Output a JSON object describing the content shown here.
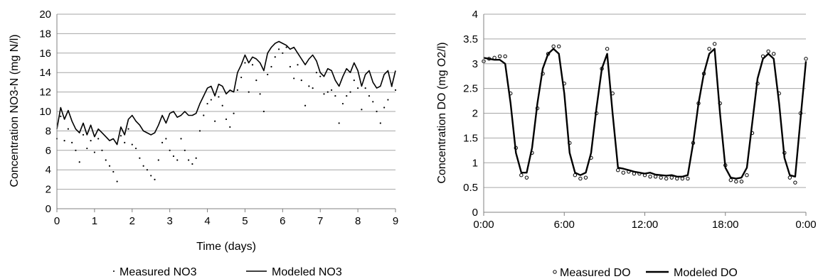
{
  "chart_data": [
    {
      "type": "line",
      "title": "",
      "xlabel": "Time (days)",
      "ylabel": "Concentration NO3-N (mg N/l)",
      "xlim": [
        0,
        9
      ],
      "ylim": [
        0,
        20
      ],
      "x_ticks": [
        "0",
        "1",
        "2",
        "3",
        "4",
        "5",
        "6",
        "7",
        "8",
        "9"
      ],
      "y_ticks": [
        "0",
        "2",
        "4",
        "6",
        "8",
        "10",
        "12",
        "14",
        "16",
        "18",
        "20"
      ],
      "grid": "horizontal",
      "legend": "bottom",
      "series": [
        {
          "name": "Measured NO3",
          "style": "dots",
          "x": [
            0,
            0.1,
            0.2,
            0.3,
            0.4,
            0.5,
            0.6,
            0.7,
            0.8,
            0.9,
            1.0,
            1.1,
            1.2,
            1.3,
            1.4,
            1.5,
            1.6,
            1.7,
            1.8,
            1.9,
            2.0,
            2.1,
            2.2,
            2.3,
            2.4,
            2.5,
            2.6,
            2.7,
            2.8,
            2.9,
            3.0,
            3.1,
            3.2,
            3.3,
            3.4,
            3.5,
            3.6,
            3.7,
            3.8,
            3.9,
            4.0,
            4.1,
            4.2,
            4.3,
            4.4,
            4.5,
            4.6,
            4.7,
            4.8,
            4.9,
            5.0,
            5.1,
            5.2,
            5.3,
            5.4,
            5.5,
            5.6,
            5.7,
            5.8,
            5.9,
            6.0,
            6.1,
            6.2,
            6.3,
            6.4,
            6.5,
            6.6,
            6.7,
            6.8,
            6.9,
            7.0,
            7.1,
            7.2,
            7.3,
            7.4,
            7.5,
            7.6,
            7.7,
            7.8,
            7.9,
            8.0,
            8.1,
            8.2,
            8.3,
            8.4,
            8.5,
            8.6,
            8.7,
            8.8,
            8.9,
            9.0
          ],
          "y": [
            7.2,
            9.5,
            7.0,
            8.2,
            6.8,
            6.0,
            4.8,
            7.6,
            6.2,
            7.0,
            5.8,
            7.2,
            6.0,
            5.0,
            4.4,
            3.8,
            2.8,
            7.5,
            6.8,
            8.2,
            6.6,
            6.2,
            5.2,
            4.4,
            4.0,
            3.4,
            3.0,
            5.0,
            6.8,
            7.2,
            6.0,
            5.4,
            5.0,
            7.2,
            6.0,
            5.0,
            4.6,
            5.2,
            8.0,
            9.6,
            10.8,
            11.2,
            9.0,
            11.5,
            10.6,
            9.2,
            8.4,
            9.8,
            12.2,
            13.5,
            15.0,
            12.0,
            14.8,
            13.2,
            11.8,
            10.0,
            13.8,
            14.6,
            15.6,
            16.4,
            16.0,
            16.6,
            14.6,
            13.4,
            14.8,
            13.2,
            10.6,
            12.6,
            12.4,
            14.0,
            13.6,
            11.8,
            12.0,
            12.2,
            11.6,
            8.8,
            10.8,
            11.6,
            12.0,
            13.2,
            12.4,
            10.2,
            12.4,
            11.6,
            11.0,
            10.0,
            8.8,
            10.4,
            11.2,
            12.6,
            12.2
          ]
        },
        {
          "name": "Modeled NO3",
          "style": "line",
          "x": [
            0,
            0.1,
            0.2,
            0.3,
            0.4,
            0.5,
            0.6,
            0.7,
            0.8,
            0.9,
            1.0,
            1.1,
            1.2,
            1.3,
            1.4,
            1.5,
            1.6,
            1.7,
            1.8,
            1.9,
            2.0,
            2.1,
            2.2,
            2.3,
            2.4,
            2.5,
            2.6,
            2.7,
            2.8,
            2.9,
            3.0,
            3.1,
            3.2,
            3.3,
            3.4,
            3.5,
            3.6,
            3.7,
            3.8,
            3.9,
            4.0,
            4.1,
            4.2,
            4.3,
            4.4,
            4.5,
            4.6,
            4.7,
            4.8,
            4.9,
            5.0,
            5.1,
            5.2,
            5.3,
            5.4,
            5.5,
            5.6,
            5.7,
            5.8,
            5.9,
            6.0,
            6.1,
            6.2,
            6.3,
            6.4,
            6.5,
            6.6,
            6.7,
            6.8,
            6.9,
            7.0,
            7.1,
            7.2,
            7.3,
            7.4,
            7.5,
            7.6,
            7.7,
            7.8,
            7.9,
            8.0,
            8.1,
            8.2,
            8.3,
            8.4,
            8.5,
            8.6,
            8.7,
            8.8,
            8.9,
            9.0
          ],
          "y": [
            8.2,
            10.4,
            9.2,
            10.1,
            9.0,
            8.2,
            7.8,
            8.8,
            7.6,
            8.6,
            7.4,
            8.2,
            7.8,
            7.4,
            7.0,
            7.2,
            6.6,
            8.4,
            7.6,
            9.2,
            9.6,
            9.0,
            8.6,
            8.0,
            7.8,
            7.6,
            7.8,
            8.6,
            9.6,
            8.8,
            9.8,
            10.0,
            9.4,
            9.6,
            10.0,
            9.6,
            9.6,
            9.8,
            10.8,
            11.6,
            12.4,
            12.6,
            11.6,
            12.8,
            12.6,
            11.8,
            12.2,
            12.0,
            14.0,
            14.8,
            15.8,
            15.0,
            15.6,
            15.4,
            15.0,
            14.2,
            16.0,
            16.6,
            17.0,
            17.2,
            17.0,
            16.8,
            16.4,
            16.6,
            16.0,
            15.4,
            14.8,
            15.4,
            15.8,
            15.2,
            14.0,
            13.6,
            14.4,
            14.2,
            13.2,
            12.6,
            13.6,
            14.4,
            14.0,
            15.0,
            14.2,
            12.6,
            13.8,
            14.2,
            13.0,
            12.4,
            12.6,
            13.8,
            14.2,
            12.6,
            14.2
          ]
        }
      ]
    },
    {
      "type": "line",
      "title": "",
      "xlabel": "",
      "ylabel": "Concentration DO (mg O2/l)",
      "xlim": [
        0,
        24
      ],
      "ylim": [
        0,
        4
      ],
      "x_ticks": [
        "0:00",
        "6:00",
        "12:00",
        "18:00",
        "0:00"
      ],
      "y_ticks": [
        "0",
        "0.5",
        "1",
        "1.5",
        "2",
        "2.5",
        "3",
        "3.5",
        "4"
      ],
      "grid": "horizontal",
      "legend": "bottom",
      "series": [
        {
          "name": "Measured DO",
          "style": "circles",
          "x": [
            0.0,
            0.4,
            0.8,
            1.2,
            1.6,
            2.0,
            2.4,
            2.8,
            3.2,
            3.6,
            4.0,
            4.4,
            4.8,
            5.2,
            5.6,
            6.0,
            6.4,
            6.8,
            7.2,
            7.6,
            8.0,
            8.4,
            8.8,
            9.2,
            9.6,
            10.0,
            10.4,
            10.8,
            11.2,
            11.6,
            12.0,
            12.4,
            12.8,
            13.2,
            13.6,
            14.0,
            14.4,
            14.8,
            15.2,
            15.6,
            16.0,
            16.4,
            16.8,
            17.2,
            17.6,
            18.0,
            18.4,
            18.8,
            19.2,
            19.6,
            20.0,
            20.4,
            20.8,
            21.2,
            21.6,
            22.0,
            22.4,
            22.8,
            23.2,
            23.6,
            24.0
          ],
          "y": [
            3.05,
            3.1,
            3.12,
            3.15,
            3.15,
            2.4,
            1.3,
            0.75,
            0.7,
            1.2,
            2.1,
            2.8,
            3.2,
            3.35,
            3.35,
            2.6,
            1.4,
            0.75,
            0.68,
            0.7,
            1.1,
            2.0,
            2.9,
            3.3,
            2.4,
            0.85,
            0.8,
            0.82,
            0.78,
            0.78,
            0.75,
            0.72,
            0.72,
            0.7,
            0.68,
            0.7,
            0.68,
            0.68,
            0.68,
            1.4,
            2.2,
            2.8,
            3.3,
            3.4,
            2.2,
            0.95,
            0.65,
            0.62,
            0.62,
            0.75,
            1.6,
            2.6,
            3.15,
            3.25,
            3.2,
            2.4,
            1.2,
            0.7,
            0.6,
            2.0,
            3.1
          ]
        },
        {
          "name": "Modeled DO",
          "style": "line",
          "x": [
            0.0,
            0.4,
            0.8,
            1.2,
            1.6,
            2.0,
            2.4,
            2.8,
            3.2,
            3.6,
            4.0,
            4.4,
            4.8,
            5.2,
            5.6,
            6.0,
            6.4,
            6.8,
            7.2,
            7.6,
            8.0,
            8.4,
            8.8,
            9.2,
            9.6,
            10.0,
            10.4,
            10.8,
            11.2,
            11.6,
            12.0,
            12.4,
            12.8,
            13.2,
            13.6,
            14.0,
            14.4,
            14.8,
            15.2,
            15.6,
            16.0,
            16.4,
            16.8,
            17.2,
            17.6,
            18.0,
            18.4,
            18.8,
            19.2,
            19.6,
            20.0,
            20.4,
            20.8,
            21.2,
            21.6,
            22.0,
            22.4,
            22.8,
            23.2,
            23.6,
            24.0
          ],
          "y": [
            3.12,
            3.1,
            3.08,
            3.08,
            3.0,
            2.2,
            1.2,
            0.8,
            0.8,
            1.3,
            2.2,
            2.9,
            3.2,
            3.3,
            3.2,
            2.4,
            1.2,
            0.8,
            0.75,
            0.8,
            1.2,
            2.1,
            2.9,
            3.2,
            2.0,
            0.9,
            0.88,
            0.85,
            0.82,
            0.8,
            0.78,
            0.8,
            0.76,
            0.75,
            0.74,
            0.75,
            0.72,
            0.72,
            0.75,
            1.4,
            2.2,
            2.8,
            3.2,
            3.3,
            2.0,
            0.9,
            0.7,
            0.68,
            0.7,
            0.9,
            1.8,
            2.7,
            3.1,
            3.2,
            3.1,
            2.2,
            1.1,
            0.75,
            0.72,
            1.9,
            3.05
          ]
        }
      ]
    }
  ]
}
